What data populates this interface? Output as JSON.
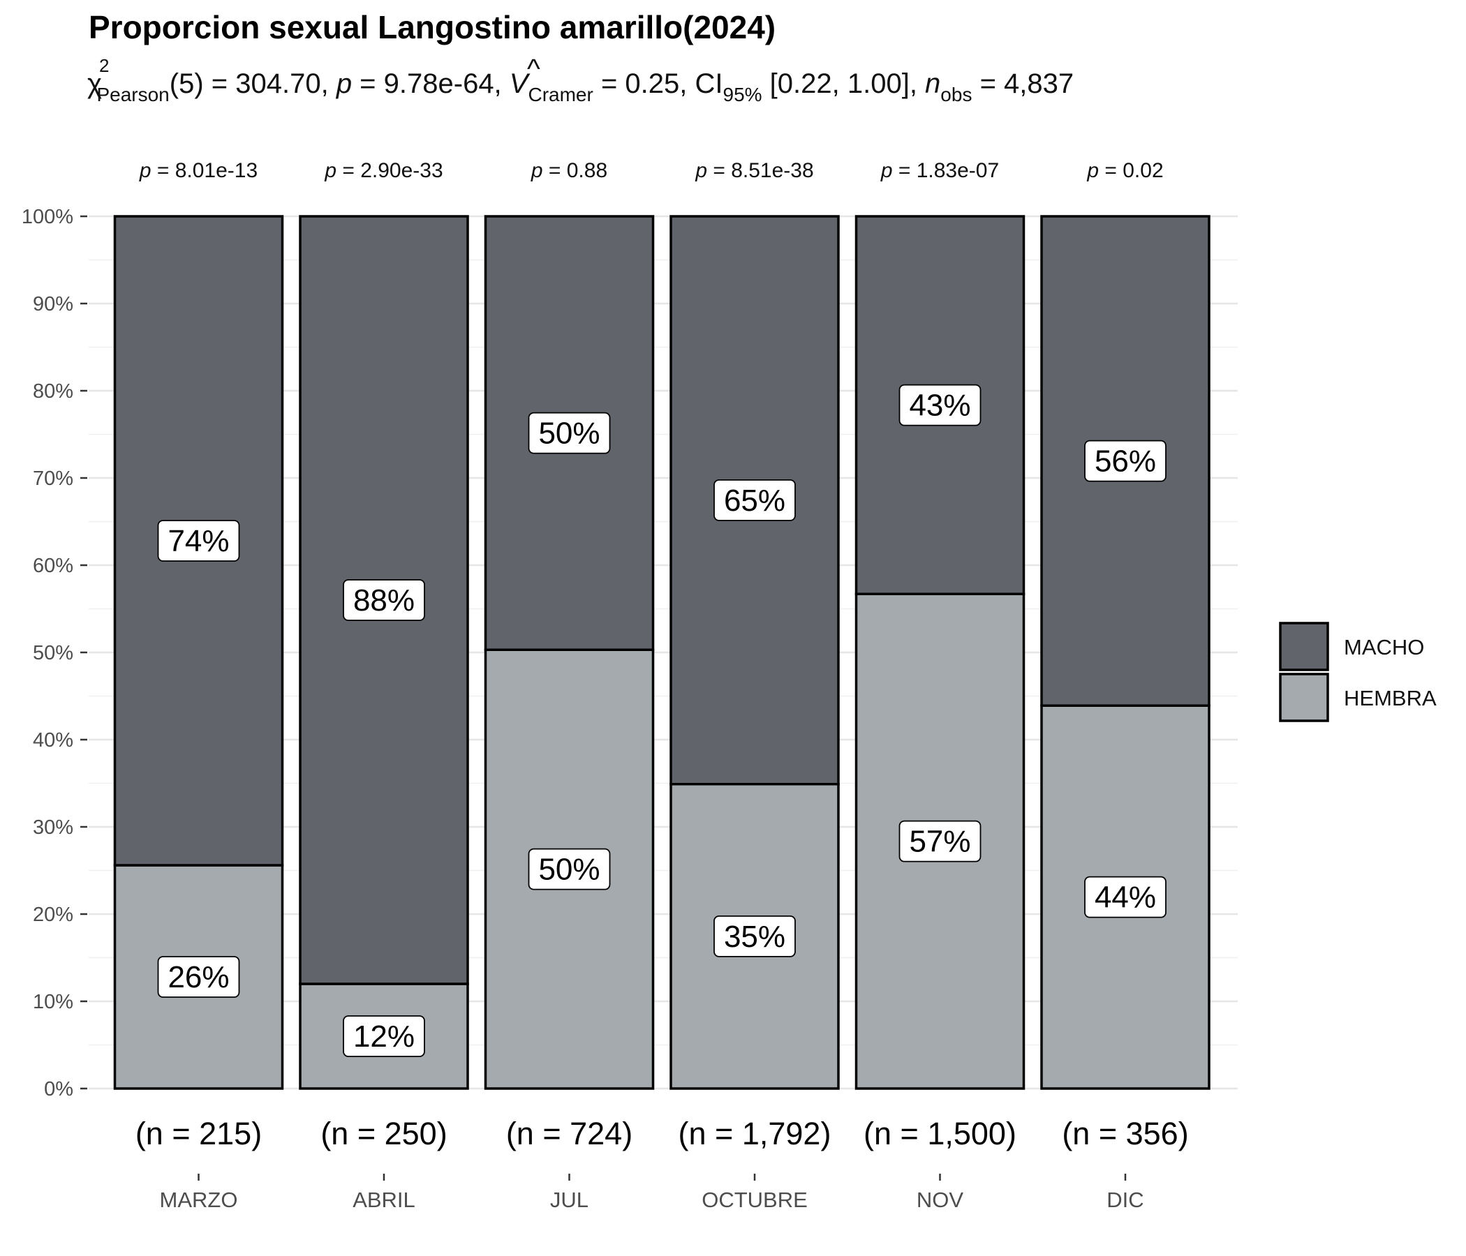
{
  "chart_data": {
    "type": "bar",
    "stacked": true,
    "title": "Proporcion sexual Langostino amarillo(2024)",
    "subtitle": {
      "chi_symbol": "χ",
      "chi_sup": "2",
      "chi_sub": "Pearson",
      "chi_rest": "(5) = 304.70, ",
      "p_symbol": "p",
      "p_rest": " = 9.78e-64, ",
      "v_symbol": "V",
      "v_hat": "^",
      "v_sub": "Cramer",
      "v_rest": " = 0.25, CI",
      "ci_sub": "95%",
      "ci_rest": " [0.22, 1.00], ",
      "n_symbol": "n",
      "n_sub": "obs",
      "n_rest": " = 4,837"
    },
    "categories": [
      "MARZO",
      "ABRIL",
      "JUL",
      "OCTUBRE",
      "NOV",
      "DIC"
    ],
    "p_values": [
      "8.01e-13",
      "2.90e-33",
      "0.88",
      "8.51e-38",
      "1.83e-07",
      "0.02"
    ],
    "p_prefix": "p",
    "p_eq": " = ",
    "counts": [
      "(n = 215)",
      "(n = 250)",
      "(n = 724)",
      "(n = 1,792)",
      "(n = 1,500)",
      "(n = 356)"
    ],
    "series": [
      {
        "name": "HEMBRA",
        "color": "#a4aaad",
        "values": [
          25.6,
          12.0,
          50.3,
          34.9,
          56.7,
          43.9
        ],
        "labels": [
          "26%",
          "12%",
          "50%",
          "35%",
          "57%",
          "44%"
        ]
      },
      {
        "name": "MACHO",
        "color": "#61646b",
        "values": [
          74.4,
          88.0,
          49.7,
          65.1,
          43.3,
          56.1
        ],
        "labels": [
          "74%",
          "88%",
          "50%",
          "65%",
          "43%",
          "56%"
        ]
      }
    ],
    "legend": {
      "position": "right",
      "items": [
        {
          "name": "MACHO",
          "color": "#61646b"
        },
        {
          "name": "HEMBRA",
          "color": "#a4aaad"
        }
      ]
    },
    "y_ticks": [
      "0%",
      "10%",
      "20%",
      "30%",
      "40%",
      "50%",
      "60%",
      "70%",
      "80%",
      "90%",
      "100%"
    ],
    "ylim": [
      0,
      100
    ],
    "xlabel": "",
    "ylabel": "",
    "grid": true
  }
}
